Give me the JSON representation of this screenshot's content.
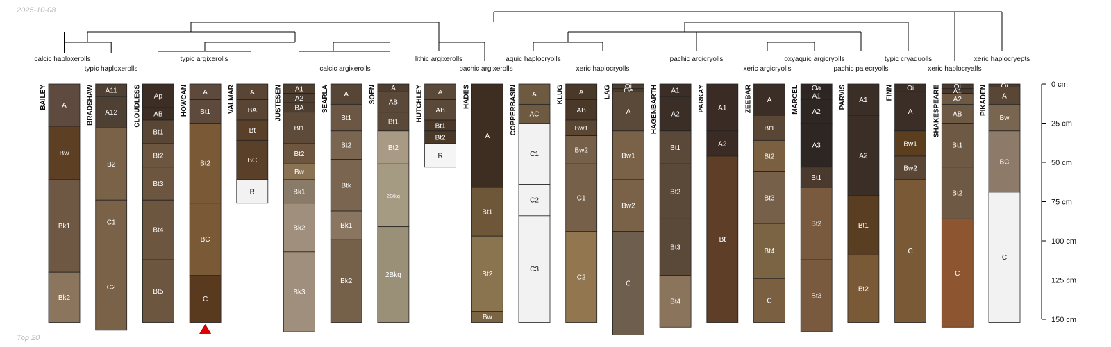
{
  "header": {
    "date": "2025-10-08",
    "footer": "Top 20"
  },
  "colors": {
    "edge": "#222222",
    "tree": "#000000",
    "axis": "#000000",
    "marker": "#e00000"
  },
  "depth_axis": {
    "unit": "cm",
    "min": 0,
    "max": 150,
    "ticks": [
      {
        "value": 0,
        "label": "0 cm"
      },
      {
        "value": 25,
        "label": "25 cm"
      },
      {
        "value": 50,
        "label": "50 cm"
      },
      {
        "value": 75,
        "label": "75 cm"
      },
      {
        "value": 100,
        "label": "100 cm"
      },
      {
        "value": 125,
        "label": "125 cm"
      },
      {
        "value": 150,
        "label": "150 cm"
      }
    ]
  },
  "profiles": [
    {
      "name": "BAILEY",
      "horizons": [
        {
          "name": "A",
          "top": 0,
          "bottom": 27,
          "color": "#5e4a3e"
        },
        {
          "name": "Bw",
          "top": 27,
          "bottom": 61,
          "color": "#5d4023"
        },
        {
          "name": "Bk1",
          "top": 61,
          "bottom": 120,
          "color": "#6f5843"
        },
        {
          "name": "Bk2",
          "top": 120,
          "bottom": 152,
          "color": "#8b755c"
        }
      ]
    },
    {
      "name": "BRADSHAW",
      "horizons": [
        {
          "name": "A11",
          "top": 0,
          "bottom": 8,
          "color": "#4f4034"
        },
        {
          "name": "A12",
          "top": 8,
          "bottom": 28,
          "color": "#4f4034"
        },
        {
          "name": "B2",
          "top": 28,
          "bottom": 74,
          "color": "#7a6248"
        },
        {
          "name": "C1",
          "top": 74,
          "bottom": 102,
          "color": "#7a6248"
        },
        {
          "name": "C2",
          "top": 102,
          "bottom": 157,
          "color": "#7a6248"
        }
      ]
    },
    {
      "name": "CLOUDLESS",
      "horizons": [
        {
          "name": "Ap",
          "top": 0,
          "bottom": 15,
          "color": "#3c2e25"
        },
        {
          "name": "AB",
          "top": 15,
          "bottom": 23,
          "color": "#3c2e25"
        },
        {
          "name": "Bt1",
          "top": 23,
          "bottom": 38,
          "color": "#5a4634"
        },
        {
          "name": "Bt2",
          "top": 38,
          "bottom": 53,
          "color": "#6d5640"
        },
        {
          "name": "Bt3",
          "top": 53,
          "bottom": 74,
          "color": "#6d5640"
        },
        {
          "name": "Bt4",
          "top": 74,
          "bottom": 112,
          "color": "#6d5640"
        },
        {
          "name": "Bt5",
          "top": 112,
          "bottom": 152,
          "color": "#6d5640"
        }
      ]
    },
    {
      "name": "HOWCAN",
      "horizons": [
        {
          "name": "A",
          "top": 0,
          "bottom": 10,
          "color": "#5e4a3c"
        },
        {
          "name": "Bt1",
          "top": 10,
          "bottom": 25,
          "color": "#5e4a3c"
        },
        {
          "name": "Bt2",
          "top": 25,
          "bottom": 76,
          "color": "#7a5a36"
        },
        {
          "name": "BC",
          "top": 76,
          "bottom": 122,
          "color": "#7a5a36"
        },
        {
          "name": "C",
          "top": 122,
          "bottom": 152,
          "color": "#5a3a1e"
        }
      ],
      "marker": true
    },
    {
      "name": "VALMAR",
      "horizons": [
        {
          "name": "A",
          "top": 0,
          "bottom": 10,
          "color": "#5a4534"
        },
        {
          "name": "BA",
          "top": 10,
          "bottom": 23,
          "color": "#5a4534"
        },
        {
          "name": "Bt",
          "top": 23,
          "bottom": 36,
          "color": "#5a4028"
        },
        {
          "name": "BC",
          "top": 36,
          "bottom": 61,
          "color": "#5a4028"
        },
        {
          "name": "R",
          "top": 61,
          "bottom": 76,
          "color": "#f2f2f2"
        }
      ]
    },
    {
      "name": "JUSTESEN",
      "horizons": [
        {
          "name": "A1",
          "top": 0,
          "bottom": 6,
          "color": "#4e3e30"
        },
        {
          "name": "A2",
          "top": 6,
          "bottom": 12,
          "color": "#4e3e30"
        },
        {
          "name": "BA",
          "top": 12,
          "bottom": 18,
          "color": "#4e3e30"
        },
        {
          "name": "Bt1",
          "top": 18,
          "bottom": 38,
          "color": "#5d4a38"
        },
        {
          "name": "Bt2",
          "top": 38,
          "bottom": 51,
          "color": "#6d5640"
        },
        {
          "name": "Bw",
          "top": 51,
          "bottom": 61,
          "color": "#8a7355"
        },
        {
          "name": "Bk1",
          "top": 61,
          "bottom": 76,
          "color": "#8a7a68"
        },
        {
          "name": "Bk2",
          "top": 76,
          "bottom": 107,
          "color": "#a08f7c"
        },
        {
          "name": "Bk3",
          "top": 107,
          "bottom": 158,
          "color": "#a08f7c"
        }
      ]
    },
    {
      "name": "SEARLA",
      "horizons": [
        {
          "name": "A",
          "top": 0,
          "bottom": 13,
          "color": "#574535"
        },
        {
          "name": "Bt1",
          "top": 13,
          "bottom": 30,
          "color": "#6b5743"
        },
        {
          "name": "Bt2",
          "top": 30,
          "bottom": 48,
          "color": "#7a6650"
        },
        {
          "name": "Btk",
          "top": 48,
          "bottom": 81,
          "color": "#7a6650"
        },
        {
          "name": "Bk1",
          "top": 81,
          "bottom": 99,
          "color": "#8a7660"
        },
        {
          "name": "Bk2",
          "top": 99,
          "bottom": 152,
          "color": "#756049"
        }
      ]
    },
    {
      "name": "SOEN",
      "horizons": [
        {
          "name": "A",
          "top": 0,
          "bottom": 5,
          "color": "#4e3e30"
        },
        {
          "name": "AB",
          "top": 5,
          "bottom": 18,
          "color": "#5a4838"
        },
        {
          "name": "Bt1",
          "top": 18,
          "bottom": 30,
          "color": "#5a4838"
        },
        {
          "name": "Bt2",
          "top": 30,
          "bottom": 51,
          "color": "#a89a84"
        },
        {
          "name": "2Btkq",
          "top": 51,
          "bottom": 91,
          "color": "#a59a82"
        },
        {
          "name": "2Bkq",
          "top": 91,
          "bottom": 152,
          "color": "#9a9078"
        }
      ]
    },
    {
      "name": "HUTCHLEY",
      "horizons": [
        {
          "name": "A",
          "top": 0,
          "bottom": 10,
          "color": "#5a4838"
        },
        {
          "name": "AB",
          "top": 10,
          "bottom": 23,
          "color": "#5a4838"
        },
        {
          "name": "Bt1",
          "top": 23,
          "bottom": 30,
          "color": "#4a3828"
        },
        {
          "name": "Bt2",
          "top": 30,
          "bottom": 38,
          "color": "#4a3828"
        },
        {
          "name": "R",
          "top": 38,
          "bottom": 53,
          "color": "#f5f5f5"
        }
      ]
    },
    {
      "name": "HADES",
      "horizons": [
        {
          "name": "A",
          "top": 0,
          "bottom": 66,
          "color": "#3e2e22"
        },
        {
          "name": "Bt1",
          "top": 66,
          "bottom": 97,
          "color": "#6e5638"
        },
        {
          "name": "Bt2",
          "top": 97,
          "bottom": 145,
          "color": "#8a7450"
        },
        {
          "name": "Bw",
          "top": 145,
          "bottom": 152,
          "color": "#7a6444"
        }
      ]
    },
    {
      "name": "COPPERBASIN",
      "horizons": [
        {
          "name": "A",
          "top": 0,
          "bottom": 13,
          "color": "#6e5a40"
        },
        {
          "name": "AC",
          "top": 13,
          "bottom": 25,
          "color": "#6e5a40"
        },
        {
          "name": "C1",
          "top": 25,
          "bottom": 64,
          "color": "#f2f2f2"
        },
        {
          "name": "C2",
          "top": 64,
          "bottom": 84,
          "color": "#f2f2f2"
        },
        {
          "name": "C3",
          "top": 84,
          "bottom": 152,
          "color": "#f2f2f2"
        }
      ]
    },
    {
      "name": "KLUG",
      "horizons": [
        {
          "name": "A",
          "top": 0,
          "bottom": 10,
          "color": "#4a3828"
        },
        {
          "name": "AB",
          "top": 10,
          "bottom": 23,
          "color": "#4a3828"
        },
        {
          "name": "Bw1",
          "top": 23,
          "bottom": 33,
          "color": "#5a4632"
        },
        {
          "name": "Bw2",
          "top": 33,
          "bottom": 51,
          "color": "#76604a"
        },
        {
          "name": "C1",
          "top": 51,
          "bottom": 94,
          "color": "#76604a"
        },
        {
          "name": "C2",
          "top": 94,
          "bottom": 152,
          "color": "#917650"
        }
      ]
    },
    {
      "name": "LAG",
      "horizons": [
        {
          "name": "Oi",
          "top": 0,
          "bottom": 3,
          "color": "#4e3e2e"
        },
        {
          "name": "Oe",
          "top": 3,
          "bottom": 5,
          "color": "#4e3e2e"
        },
        {
          "name": "A",
          "top": 5,
          "bottom": 30,
          "color": "#5a4838"
        },
        {
          "name": "Bw1",
          "top": 30,
          "bottom": 61,
          "color": "#7a6248"
        },
        {
          "name": "Bw2",
          "top": 61,
          "bottom": 94,
          "color": "#7a6248"
        },
        {
          "name": "C",
          "top": 94,
          "bottom": 160,
          "color": "#6e5e4e"
        }
      ]
    },
    {
      "name": "HAGENBARTH",
      "horizons": [
        {
          "name": "A1",
          "top": 0,
          "bottom": 8,
          "color": "#3a2e26"
        },
        {
          "name": "A2",
          "top": 8,
          "bottom": 30,
          "color": "#3a2e26"
        },
        {
          "name": "Bt1",
          "top": 30,
          "bottom": 51,
          "color": "#5a4838"
        },
        {
          "name": "Bt2",
          "top": 51,
          "bottom": 86,
          "color": "#5a4838"
        },
        {
          "name": "Bt3",
          "top": 86,
          "bottom": 122,
          "color": "#5a4838"
        },
        {
          "name": "Bt4",
          "top": 122,
          "bottom": 155,
          "color": "#8a755c"
        }
      ]
    },
    {
      "name": "PARKAY",
      "horizons": [
        {
          "name": "A1",
          "top": 0,
          "bottom": 30,
          "color": "#3a2c24"
        },
        {
          "name": "A2",
          "top": 30,
          "bottom": 46,
          "color": "#3a2c24"
        },
        {
          "name": "Bt",
          "top": 46,
          "bottom": 152,
          "color": "#5e3e26"
        }
      ]
    },
    {
      "name": "ZEEBAR",
      "horizons": [
        {
          "name": "A",
          "top": 0,
          "bottom": 20,
          "color": "#3a2e26"
        },
        {
          "name": "Bt1",
          "top": 20,
          "bottom": 36,
          "color": "#5a4634"
        },
        {
          "name": "Bt2",
          "top": 36,
          "bottom": 56,
          "color": "#7a6040"
        },
        {
          "name": "Bt3",
          "top": 56,
          "bottom": 89,
          "color": "#76604a"
        },
        {
          "name": "Bt4",
          "top": 89,
          "bottom": 124,
          "color": "#7a6444"
        },
        {
          "name": "C",
          "top": 124,
          "bottom": 152,
          "color": "#7a6040"
        }
      ]
    },
    {
      "name": "MARCEL",
      "horizons": [
        {
          "name": "Oa",
          "top": 0,
          "bottom": 5,
          "color": "#2e2622"
        },
        {
          "name": "A1",
          "top": 5,
          "bottom": 10,
          "color": "#2e2622"
        },
        {
          "name": "A2",
          "top": 10,
          "bottom": 25,
          "color": "#2e2622"
        },
        {
          "name": "A3",
          "top": 25,
          "bottom": 53,
          "color": "#2e2622"
        },
        {
          "name": "Bt1",
          "top": 53,
          "bottom": 66,
          "color": "#4a3a2e"
        },
        {
          "name": "Bt2",
          "top": 66,
          "bottom": 112,
          "color": "#7a5a3e"
        },
        {
          "name": "Bt3",
          "top": 112,
          "bottom": 158,
          "color": "#7a5a3e"
        }
      ]
    },
    {
      "name": "PARVIS",
      "horizons": [
        {
          "name": "A1",
          "top": 0,
          "bottom": 20,
          "color": "#3a2e26"
        },
        {
          "name": "A2",
          "top": 20,
          "bottom": 71,
          "color": "#3a2e26"
        },
        {
          "name": "Bt1",
          "top": 71,
          "bottom": 109,
          "color": "#5a3e22"
        },
        {
          "name": "Bt2",
          "top": 109,
          "bottom": 152,
          "color": "#7a5a36"
        }
      ]
    },
    {
      "name": "FINN",
      "horizons": [
        {
          "name": "Oi",
          "top": 0,
          "bottom": 5,
          "color": "#3a2e26"
        },
        {
          "name": "A",
          "top": 5,
          "bottom": 30,
          "color": "#3a2e26"
        },
        {
          "name": "Bw1",
          "top": 30,
          "bottom": 46,
          "color": "#5a3e1e"
        },
        {
          "name": "Bw2",
          "top": 46,
          "bottom": 61,
          "color": "#5a4634"
        },
        {
          "name": "C",
          "top": 61,
          "bottom": 152,
          "color": "#7a5a36"
        }
      ]
    },
    {
      "name": "SHAKESPEARE",
      "horizons": [
        {
          "name": "Oi",
          "top": 0,
          "bottom": 3,
          "color": "#4a3a2e"
        },
        {
          "name": "A1",
          "top": 3,
          "bottom": 6,
          "color": "#4a3a2e"
        },
        {
          "name": "A2",
          "top": 6,
          "bottom": 13,
          "color": "#6e5a44"
        },
        {
          "name": "AB",
          "top": 13,
          "bottom": 25,
          "color": "#6e5a44"
        },
        {
          "name": "Bt1",
          "top": 25,
          "bottom": 53,
          "color": "#6e5a44"
        },
        {
          "name": "Bt2",
          "top": 53,
          "bottom": 86,
          "color": "#6e5a44"
        },
        {
          "name": "C",
          "top": 86,
          "bottom": 155,
          "color": "#8e5630"
        }
      ]
    },
    {
      "name": "PIKADEN",
      "horizons": [
        {
          "name": "Oi",
          "top": 0,
          "bottom": 2,
          "color": "#4a3a2e"
        },
        {
          "name": "A",
          "top": 2,
          "bottom": 13,
          "color": "#5a4634"
        },
        {
          "name": "Bw",
          "top": 13,
          "bottom": 30,
          "color": "#7a6650"
        },
        {
          "name": "BC",
          "top": 30,
          "bottom": 69,
          "color": "#8e7a68"
        },
        {
          "name": "C",
          "top": 69,
          "bottom": 152,
          "color": "#f2f2f2"
        }
      ]
    }
  ],
  "taxa": [
    {
      "label": "calcic haploxerolls"
    },
    {
      "label": "typic haploxerolls"
    },
    {
      "label": "typic argixerolls"
    },
    {
      "label": "calcic argixerolls"
    },
    {
      "label": "lithic argixerolls"
    },
    {
      "label": "pachic argixerolls"
    },
    {
      "label": "aquic haplocryolls"
    },
    {
      "label": "xeric haplocryolls"
    },
    {
      "label": "pachic argicryolls"
    },
    {
      "label": "xeric argicryolls"
    },
    {
      "label": "oxyaquic argicryolls"
    },
    {
      "label": "pachic palecryolls"
    },
    {
      "label": "typic cryaquolls"
    },
    {
      "label": "xeric haplocryalfs"
    },
    {
      "label": "xeric haplocryepts"
    }
  ]
}
